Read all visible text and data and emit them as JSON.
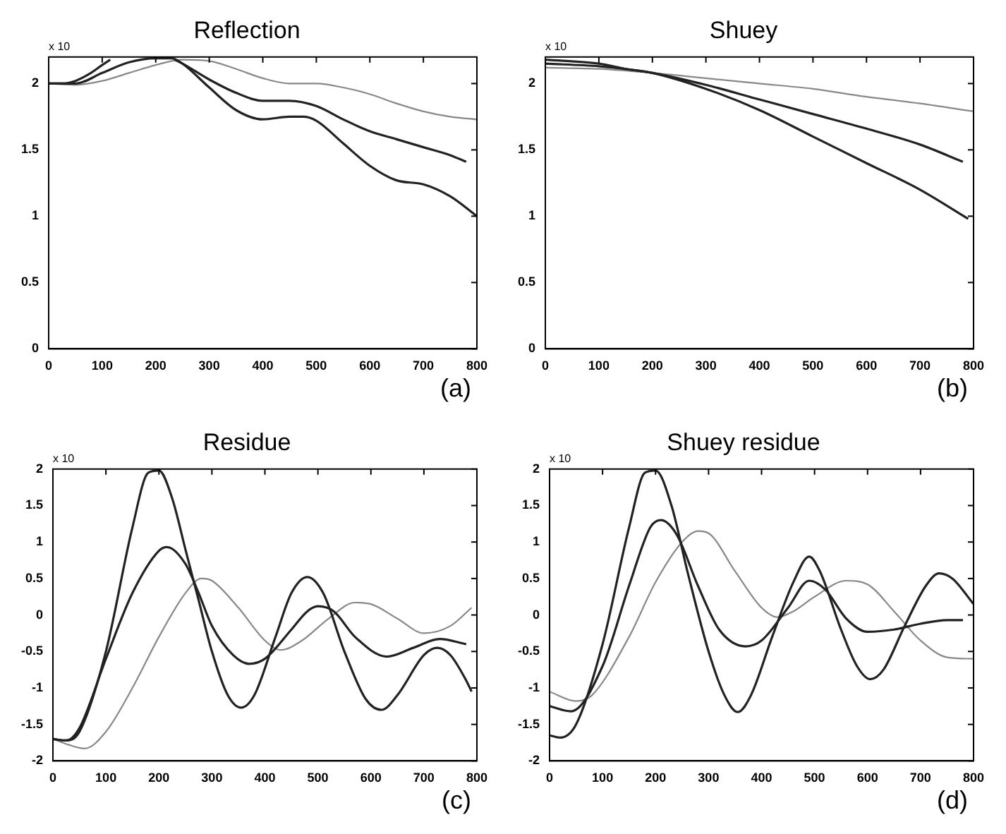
{
  "chart_data": [
    {
      "type": "line",
      "title": "Reflection",
      "annotations": [
        "x 10",
        "(a)"
      ],
      "xlim": [
        0,
        800
      ],
      "xticks": [
        0,
        100,
        200,
        300,
        400,
        500,
        600,
        700,
        800
      ],
      "ylim": [
        0,
        2.2
      ],
      "yticks": [
        0,
        0.5,
        1,
        1.5,
        2
      ],
      "grid": false,
      "legend": false,
      "series": [
        {
          "color": "#222222",
          "x": [
            0,
            25,
            50,
            75,
            100,
            115,
            150,
            200,
            235,
            250,
            300,
            350,
            400,
            450,
            475,
            500,
            550,
            600,
            650,
            700,
            750,
            800
          ],
          "values": [
            2.0,
            2.0,
            2.02,
            2.07,
            2.14,
            2.18,
            null,
            null,
            2.18,
            2.15,
            1.97,
            1.8,
            1.73,
            1.75,
            1.75,
            1.72,
            1.55,
            1.38,
            1.27,
            1.24,
            1.15,
            1.0
          ]
        },
        {
          "color": "#222222",
          "x": [
            0,
            50,
            100,
            150,
            200,
            230,
            250,
            300,
            350,
            400,
            450,
            500,
            550,
            600,
            650,
            700,
            750,
            780
          ],
          "values": [
            2.0,
            2.0,
            2.08,
            2.16,
            2.19,
            2.19,
            2.15,
            2.03,
            1.93,
            1.87,
            1.87,
            1.83,
            1.73,
            1.64,
            1.58,
            1.52,
            1.46,
            1.41
          ]
        },
        {
          "color": "#888888",
          "x": [
            0,
            50,
            100,
            150,
            200,
            250,
            300,
            350,
            400,
            450,
            500,
            550,
            600,
            650,
            700,
            750,
            800
          ],
          "values": [
            2.0,
            1.99,
            2.02,
            2.08,
            2.14,
            2.18,
            2.17,
            2.11,
            2.04,
            2.0,
            2.0,
            1.97,
            1.92,
            1.85,
            1.79,
            1.75,
            1.73
          ]
        }
      ]
    },
    {
      "type": "line",
      "title": "Shuey",
      "annotations": [
        "x 10",
        "(b)"
      ],
      "xlim": [
        0,
        800
      ],
      "xticks": [
        0,
        100,
        200,
        300,
        400,
        500,
        600,
        700,
        800
      ],
      "ylim": [
        0,
        2.2
      ],
      "yticks": [
        0,
        0.5,
        1,
        1.5,
        2
      ],
      "grid": false,
      "legend": false,
      "series": [
        {
          "color": "#222222",
          "x": [
            0,
            100,
            150,
            200,
            300,
            400,
            500,
            600,
            700,
            790
          ],
          "values": [
            2.18,
            2.15,
            2.11,
            2.08,
            1.96,
            1.8,
            1.6,
            1.4,
            1.2,
            0.98
          ]
        },
        {
          "color": "#222222",
          "x": [
            0,
            100,
            200,
            300,
            400,
            500,
            600,
            700,
            780
          ],
          "values": [
            2.15,
            2.13,
            2.08,
            1.99,
            1.88,
            1.77,
            1.66,
            1.54,
            1.41
          ]
        },
        {
          "color": "#888888",
          "x": [
            0,
            100,
            200,
            300,
            400,
            500,
            600,
            700,
            800
          ],
          "values": [
            2.12,
            2.11,
            2.08,
            2.04,
            2.0,
            1.96,
            1.9,
            1.85,
            1.79
          ]
        }
      ]
    },
    {
      "type": "line",
      "title": "Residue",
      "annotations": [
        "x 10",
        "(c)"
      ],
      "xlim": [
        0,
        800
      ],
      "xticks": [
        0,
        100,
        200,
        300,
        400,
        500,
        600,
        700,
        800
      ],
      "ylim": [
        -2,
        2
      ],
      "yticks": [
        -2,
        -1.5,
        -1,
        -0.5,
        0,
        0.5,
        1,
        1.5,
        2
      ],
      "grid": false,
      "legend": false,
      "series": [
        {
          "color": "#222222",
          "x": [
            0,
            25,
            50,
            100,
            150,
            180,
            200,
            225,
            250,
            275,
            300,
            330,
            355,
            380,
            420,
            450,
            480,
            510,
            550,
            590,
            620,
            650,
            700,
            725,
            750,
            780,
            790
          ],
          "values": [
            -1.7,
            -1.72,
            -1.6,
            -0.5,
            1.2,
            1.95,
            1.98,
            1.6,
            0.9,
            0.2,
            -0.5,
            -1.1,
            -1.27,
            -1.1,
            -0.3,
            0.3,
            0.52,
            0.3,
            -0.5,
            -1.15,
            -1.3,
            -1.1,
            -0.55,
            -0.45,
            -0.55,
            -0.9,
            -1.05
          ]
        },
        {
          "color": "#222222",
          "x": [
            0,
            25,
            50,
            100,
            150,
            200,
            215,
            250,
            275,
            300,
            340,
            370,
            400,
            450,
            480,
            500,
            530,
            570,
            630,
            680,
            730,
            780
          ],
          "values": [
            -1.7,
            -1.72,
            -1.55,
            -0.6,
            0.3,
            0.88,
            0.93,
            0.7,
            0.3,
            -0.15,
            -0.55,
            -0.67,
            -0.6,
            -0.2,
            0.05,
            0.12,
            0.05,
            -0.3,
            -0.57,
            -0.45,
            -0.33,
            -0.4
          ]
        },
        {
          "color": "#888888",
          "x": [
            0,
            30,
            60,
            100,
            150,
            200,
            250,
            280,
            300,
            350,
            400,
            430,
            470,
            520,
            570,
            600,
            650,
            700,
            750,
            790
          ],
          "values": [
            -1.7,
            -1.78,
            -1.83,
            -1.6,
            -1.0,
            -0.3,
            0.3,
            0.5,
            0.47,
            0.1,
            -0.35,
            -0.48,
            -0.35,
            -0.05,
            0.17,
            0.15,
            -0.05,
            -0.25,
            -0.15,
            0.1
          ]
        }
      ]
    },
    {
      "type": "line",
      "title": "Shuey residue",
      "annotations": [
        "x 10",
        "(d)"
      ],
      "xlim": [
        0,
        800
      ],
      "xticks": [
        0,
        100,
        200,
        300,
        400,
        500,
        600,
        700,
        800
      ],
      "ylim": [
        -2,
        2
      ],
      "yticks": [
        -2,
        -1.5,
        -1,
        -0.5,
        0,
        0.5,
        1,
        1.5,
        2
      ],
      "grid": false,
      "legend": false,
      "series": [
        {
          "color": "#222222",
          "x": [
            0,
            20,
            50,
            100,
            150,
            180,
            200,
            230,
            260,
            300,
            330,
            355,
            380,
            420,
            460,
            490,
            510,
            550,
            580,
            605,
            630,
            670,
            710,
            735,
            760,
            800
          ],
          "values": [
            -1.65,
            -1.68,
            -1.5,
            -0.4,
            1.2,
            1.95,
            1.98,
            1.5,
            0.6,
            -0.5,
            -1.1,
            -1.33,
            -1.1,
            -0.3,
            0.45,
            0.8,
            0.6,
            -0.2,
            -0.7,
            -0.88,
            -0.75,
            -0.15,
            0.4,
            0.57,
            0.5,
            0.15
          ]
        },
        {
          "color": "#222222",
          "x": [
            0,
            40,
            100,
            150,
            190,
            210,
            240,
            280,
            320,
            370,
            400,
            450,
            490,
            520,
            560,
            600,
            650,
            700,
            750,
            780
          ],
          "values": [
            -1.25,
            -1.32,
            -0.7,
            0.4,
            1.2,
            1.3,
            1.1,
            0.4,
            -0.2,
            -0.43,
            -0.35,
            0.1,
            0.47,
            0.35,
            -0.05,
            -0.23,
            -0.2,
            -0.12,
            -0.07,
            -0.07
          ]
        },
        {
          "color": "#888888",
          "x": [
            0,
            50,
            80,
            150,
            200,
            250,
            280,
            300,
            350,
            400,
            430,
            460,
            500,
            560,
            600,
            650,
            700,
            750,
            800
          ],
          "values": [
            -1.05,
            -1.18,
            -1.1,
            -0.3,
            0.45,
            1.0,
            1.15,
            1.12,
            0.6,
            0.1,
            -0.03,
            0.05,
            0.25,
            0.47,
            0.42,
            0.05,
            -0.35,
            -0.58,
            -0.6
          ]
        }
      ]
    }
  ]
}
